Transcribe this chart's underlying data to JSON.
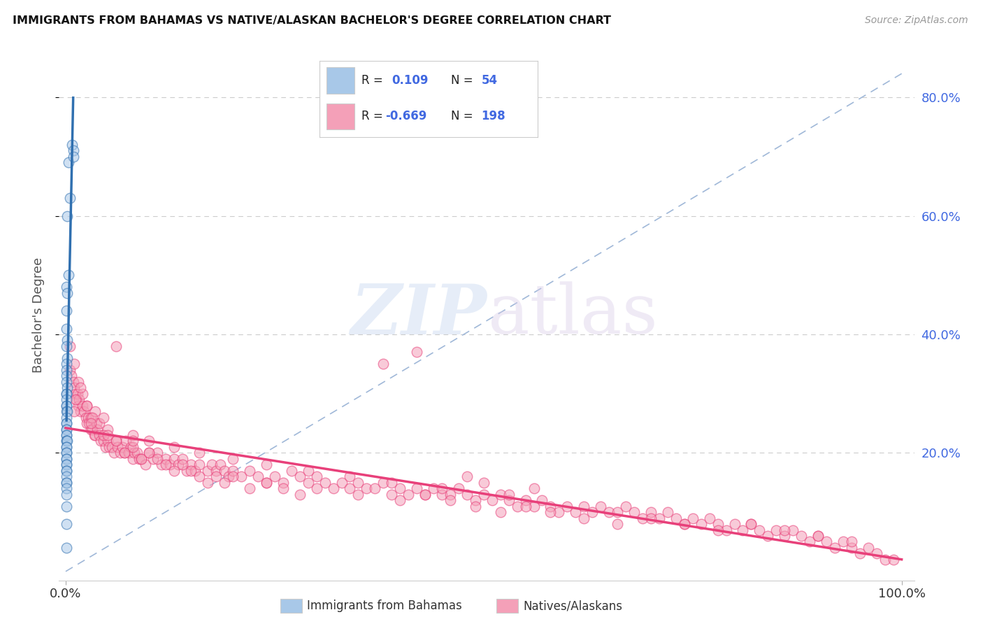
{
  "title": "IMMIGRANTS FROM BAHAMAS VS NATIVE/ALASKAN BACHELOR'S DEGREE CORRELATION CHART",
  "source": "Source: ZipAtlas.com",
  "ylabel": "Bachelor's Degree",
  "legend_label1": "Immigrants from Bahamas",
  "legend_label2": "Natives/Alaskans",
  "color_blue": "#a8c8e8",
  "color_pink": "#f4a0b8",
  "color_blue_line": "#3070b0",
  "color_pink_line": "#e8407a",
  "color_diag": "#a0b8d8",
  "color_grid": "#cccccc",
  "color_ytick": "#4169e1",
  "background": "#ffffff",
  "blue_scatter_x": [
    0.003,
    0.008,
    0.009,
    0.009,
    0.002,
    0.005,
    0.003,
    0.001,
    0.002,
    0.001,
    0.001,
    0.002,
    0.001,
    0.002,
    0.001,
    0.001,
    0.001,
    0.001,
    0.002,
    0.001,
    0.001,
    0.001,
    0.001,
    0.001,
    0.001,
    0.002,
    0.001,
    0.001,
    0.001,
    0.001,
    0.001,
    0.001,
    0.001,
    0.001,
    0.001,
    0.002,
    0.001,
    0.001,
    0.001,
    0.001,
    0.001,
    0.001,
    0.001,
    0.001,
    0.001,
    0.001,
    0.001,
    0.001,
    0.001,
    0.001,
    0.001,
    0.001,
    0.001,
    0.001
  ],
  "blue_scatter_y": [
    0.69,
    0.72,
    0.71,
    0.7,
    0.6,
    0.63,
    0.5,
    0.48,
    0.47,
    0.44,
    0.41,
    0.39,
    0.38,
    0.36,
    0.35,
    0.34,
    0.33,
    0.32,
    0.31,
    0.3,
    0.3,
    0.29,
    0.28,
    0.28,
    0.27,
    0.27,
    0.26,
    0.25,
    0.25,
    0.24,
    0.24,
    0.23,
    0.23,
    0.22,
    0.22,
    0.22,
    0.21,
    0.21,
    0.2,
    0.2,
    0.19,
    0.19,
    0.18,
    0.18,
    0.17,
    0.17,
    0.16,
    0.15,
    0.15,
    0.14,
    0.13,
    0.11,
    0.08,
    0.04
  ],
  "pink_scatter_x": [
    0.005,
    0.007,
    0.009,
    0.01,
    0.012,
    0.013,
    0.014,
    0.015,
    0.016,
    0.018,
    0.02,
    0.022,
    0.024,
    0.025,
    0.027,
    0.028,
    0.03,
    0.032,
    0.034,
    0.035,
    0.037,
    0.038,
    0.04,
    0.042,
    0.045,
    0.048,
    0.05,
    0.052,
    0.055,
    0.058,
    0.06,
    0.062,
    0.065,
    0.068,
    0.07,
    0.072,
    0.075,
    0.078,
    0.08,
    0.082,
    0.085,
    0.088,
    0.09,
    0.095,
    0.1,
    0.105,
    0.11,
    0.115,
    0.12,
    0.125,
    0.13,
    0.135,
    0.14,
    0.145,
    0.15,
    0.155,
    0.16,
    0.17,
    0.175,
    0.18,
    0.185,
    0.19,
    0.195,
    0.2,
    0.21,
    0.22,
    0.23,
    0.24,
    0.25,
    0.26,
    0.27,
    0.28,
    0.29,
    0.3,
    0.31,
    0.32,
    0.33,
    0.34,
    0.35,
    0.36,
    0.37,
    0.38,
    0.39,
    0.4,
    0.41,
    0.42,
    0.43,
    0.44,
    0.45,
    0.46,
    0.47,
    0.48,
    0.49,
    0.5,
    0.51,
    0.52,
    0.53,
    0.54,
    0.55,
    0.56,
    0.57,
    0.58,
    0.59,
    0.6,
    0.61,
    0.62,
    0.63,
    0.64,
    0.65,
    0.66,
    0.67,
    0.68,
    0.69,
    0.7,
    0.71,
    0.72,
    0.73,
    0.74,
    0.75,
    0.76,
    0.77,
    0.78,
    0.79,
    0.8,
    0.81,
    0.82,
    0.83,
    0.84,
    0.85,
    0.86,
    0.87,
    0.88,
    0.89,
    0.9,
    0.91,
    0.92,
    0.93,
    0.94,
    0.95,
    0.96,
    0.97,
    0.98,
    0.99,
    0.005,
    0.01,
    0.015,
    0.02,
    0.025,
    0.03,
    0.035,
    0.04,
    0.045,
    0.05,
    0.06,
    0.07,
    0.08,
    0.09,
    0.1,
    0.11,
    0.12,
    0.13,
    0.14,
    0.15,
    0.16,
    0.17,
    0.18,
    0.19,
    0.2,
    0.22,
    0.24,
    0.26,
    0.28,
    0.3,
    0.35,
    0.4,
    0.43,
    0.46,
    0.49,
    0.52,
    0.55,
    0.58,
    0.62,
    0.66,
    0.7,
    0.74,
    0.78,
    0.82,
    0.86,
    0.9,
    0.94,
    0.012,
    0.018,
    0.025,
    0.032,
    0.045,
    0.06,
    0.08,
    0.1,
    0.13,
    0.16,
    0.2,
    0.24,
    0.29,
    0.34,
    0.39,
    0.45,
    0.5,
    0.56,
    0.38,
    0.42,
    0.48,
    0.53,
    0.01,
    0.03,
    0.05,
    0.08
  ],
  "pink_scatter_y": [
    0.34,
    0.33,
    0.32,
    0.31,
    0.3,
    0.29,
    0.3,
    0.28,
    0.29,
    0.27,
    0.28,
    0.27,
    0.26,
    0.25,
    0.26,
    0.25,
    0.24,
    0.24,
    0.23,
    0.23,
    0.25,
    0.24,
    0.23,
    0.22,
    0.22,
    0.21,
    0.22,
    0.21,
    0.21,
    0.2,
    0.22,
    0.21,
    0.2,
    0.21,
    0.2,
    0.22,
    0.2,
    0.21,
    0.19,
    0.2,
    0.2,
    0.19,
    0.19,
    0.18,
    0.2,
    0.19,
    0.2,
    0.18,
    0.19,
    0.18,
    0.19,
    0.18,
    0.19,
    0.17,
    0.18,
    0.17,
    0.18,
    0.17,
    0.18,
    0.17,
    0.18,
    0.17,
    0.16,
    0.17,
    0.16,
    0.17,
    0.16,
    0.15,
    0.16,
    0.15,
    0.17,
    0.16,
    0.15,
    0.16,
    0.15,
    0.14,
    0.15,
    0.14,
    0.15,
    0.14,
    0.14,
    0.15,
    0.13,
    0.14,
    0.13,
    0.14,
    0.13,
    0.14,
    0.13,
    0.13,
    0.14,
    0.13,
    0.12,
    0.13,
    0.12,
    0.13,
    0.12,
    0.11,
    0.12,
    0.11,
    0.12,
    0.11,
    0.1,
    0.11,
    0.1,
    0.11,
    0.1,
    0.11,
    0.1,
    0.1,
    0.11,
    0.1,
    0.09,
    0.1,
    0.09,
    0.1,
    0.09,
    0.08,
    0.09,
    0.08,
    0.09,
    0.08,
    0.07,
    0.08,
    0.07,
    0.08,
    0.07,
    0.06,
    0.07,
    0.06,
    0.07,
    0.06,
    0.05,
    0.06,
    0.05,
    0.04,
    0.05,
    0.04,
    0.03,
    0.04,
    0.03,
    0.02,
    0.02,
    0.38,
    0.35,
    0.32,
    0.3,
    0.28,
    0.26,
    0.27,
    0.25,
    0.26,
    0.24,
    0.22,
    0.2,
    0.21,
    0.19,
    0.2,
    0.19,
    0.18,
    0.17,
    0.18,
    0.17,
    0.16,
    0.15,
    0.16,
    0.15,
    0.16,
    0.14,
    0.15,
    0.14,
    0.13,
    0.14,
    0.13,
    0.12,
    0.13,
    0.12,
    0.11,
    0.1,
    0.11,
    0.1,
    0.09,
    0.08,
    0.09,
    0.08,
    0.07,
    0.08,
    0.07,
    0.06,
    0.05,
    0.29,
    0.31,
    0.28,
    0.26,
    0.23,
    0.38,
    0.23,
    0.22,
    0.21,
    0.2,
    0.19,
    0.18,
    0.17,
    0.16,
    0.15,
    0.14,
    0.15,
    0.14,
    0.35,
    0.37,
    0.16,
    0.13,
    0.27,
    0.25,
    0.23,
    0.22
  ]
}
